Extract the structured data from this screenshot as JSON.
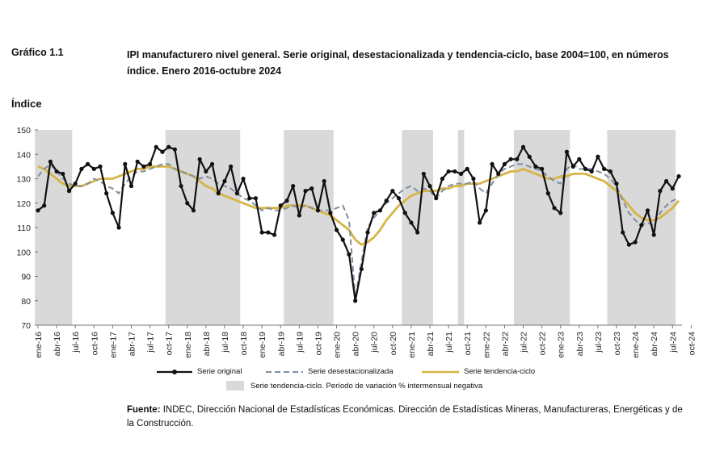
{
  "figure_label": "Gráfico 1.1",
  "figure_title": "IPI manufacturero nivel general. Serie original, desestacionalizada y tendencia-ciclo, base 2004=100, en números índice. Enero 2016-octubre 2024",
  "source_label": "Fuente:",
  "source_text": "INDEC, Dirección Nacional de Estadísticas Económicas. Dirección de Estadísticas Mineras, Manufactureras, Energéticas y de la Construcción.",
  "chart_data": {
    "type": "line",
    "ylabel": "Índice",
    "ylim": [
      70,
      150
    ],
    "yticks": [
      70,
      80,
      90,
      100,
      110,
      120,
      130,
      140,
      150
    ],
    "x_ticks": [
      "ene-16",
      "abr-16",
      "jul-16",
      "oct-16",
      "ene-17",
      "abr-17",
      "jul-17",
      "oct-17",
      "ene-18",
      "abr-18",
      "jul-18",
      "oct-18",
      "ene-19",
      "abr-19",
      "jul-19",
      "oct-19",
      "ene-20",
      "abr-20",
      "jul-20",
      "oct-20",
      "ene-21",
      "abr-21",
      "jul-21",
      "oct-21",
      "ene-22",
      "abr-22",
      "jul-22",
      "oct-22",
      "ene-23",
      "abr-23",
      "jul-23",
      "oct-23",
      "ene-24",
      "abr-24",
      "jul-24",
      "oct-24"
    ],
    "shaded_periods": [
      [
        0,
        6
      ],
      [
        21,
        33
      ],
      [
        40,
        48
      ],
      [
        59,
        64
      ],
      [
        63,
        64
      ],
      [
        77,
        86
      ],
      [
        68,
        69
      ],
      [
        92,
        103
      ]
    ],
    "series": [
      {
        "name": "Serie original",
        "values": [
          117,
          119,
          137,
          133,
          132,
          125,
          128,
          134,
          136,
          134,
          135,
          124,
          116,
          110,
          136,
          127,
          137,
          135,
          136,
          143,
          141,
          143,
          142,
          127,
          120,
          117,
          138,
          133,
          136,
          124,
          129,
          135,
          124,
          130,
          122,
          122,
          108,
          108,
          107,
          119,
          121,
          127,
          115,
          125,
          126,
          117,
          129,
          116,
          109,
          105,
          99,
          80,
          93,
          108,
          116,
          117,
          121,
          125,
          122,
          116,
          112,
          108,
          132,
          127,
          122,
          130,
          133,
          133,
          132,
          134,
          130,
          112,
          117,
          136,
          132,
          136,
          138,
          138,
          143,
          139,
          135,
          134,
          124,
          118,
          116,
          141,
          135,
          138,
          134,
          133,
          139,
          134,
          133,
          128,
          108,
          103,
          104,
          111,
          117,
          107,
          125,
          129,
          126,
          131
        ]
      },
      {
        "name": "Serie desestacionalizada",
        "values": [
          131,
          134,
          136,
          133,
          130,
          128,
          127,
          127,
          128,
          130,
          129,
          127,
          126,
          124,
          128,
          131,
          133,
          133,
          134,
          135,
          136,
          136,
          134,
          133,
          132,
          131,
          130,
          131,
          130,
          128,
          127,
          126,
          124,
          122,
          121,
          119,
          117,
          118,
          117,
          117,
          118,
          119,
          118,
          119,
          118,
          117,
          117,
          117,
          118,
          119,
          113,
          81,
          96,
          110,
          114,
          117,
          120,
          122,
          124,
          126,
          127,
          125,
          126,
          125,
          122,
          125,
          127,
          128,
          128,
          128,
          129,
          126,
          124,
          128,
          132,
          134,
          135,
          136,
          136,
          135,
          134,
          133,
          131,
          129,
          128,
          134,
          136,
          134,
          134,
          134,
          133,
          132,
          130,
          127,
          121,
          116,
          113,
          111,
          112,
          111,
          116,
          119,
          121,
          122
        ]
      },
      {
        "name": "Serie tendencia-ciclo",
        "values": [
          135,
          134,
          132,
          130,
          128,
          127,
          127,
          127,
          128,
          129,
          130,
          130,
          130,
          131,
          132,
          133,
          134,
          134,
          135,
          135,
          135,
          135,
          134,
          133,
          132,
          131,
          129,
          127,
          126,
          124,
          123,
          122,
          121,
          120,
          119,
          118,
          118,
          118,
          118,
          118,
          119,
          119,
          119,
          119,
          118,
          117,
          116,
          115,
          113,
          111,
          109,
          105,
          103,
          104,
          106,
          109,
          113,
          116,
          119,
          121,
          123,
          124,
          125,
          125,
          125,
          126,
          126,
          127,
          127,
          128,
          128,
          128,
          129,
          130,
          131,
          132,
          133,
          133,
          134,
          133,
          132,
          131,
          130,
          130,
          131,
          131,
          132,
          132,
          132,
          131,
          130,
          129,
          127,
          125,
          122,
          119,
          116,
          114,
          113,
          113,
          114,
          116,
          118,
          121
        ]
      }
    ],
    "legend": [
      "Serie original",
      "Serie desestacionalizada",
      "Serie tendencia-ciclo"
    ],
    "legend_shading": "Serie tendencia-ciclo. Período de variación % intermensual negativa",
    "colors": {
      "original": "#111111",
      "sa": "#7f8ea0",
      "trend": "#d8b445",
      "shade": "#d9d9d9"
    }
  }
}
